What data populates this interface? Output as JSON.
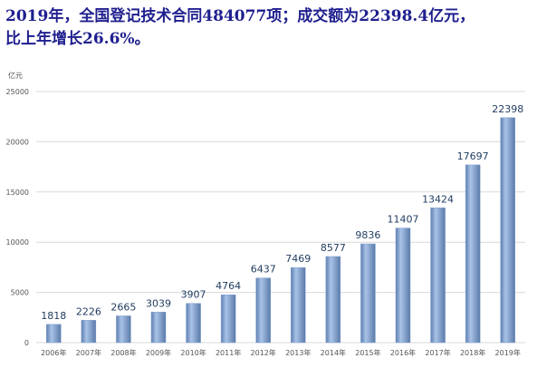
{
  "headline": {
    "line1": "2019年，全国登记技术合同484077项；成交额为22398.4亿元，",
    "line2": "比上年增长26.6%。"
  },
  "chart_data": {
    "type": "bar",
    "y_unit": "亿元",
    "categories": [
      "2006年",
      "2007年",
      "2008年",
      "2009年",
      "2010年",
      "2011年",
      "2012年",
      "2013年",
      "2014年",
      "2015年",
      "2016年",
      "2017年",
      "2018年",
      "2019年"
    ],
    "values": [
      1818,
      2226,
      2665,
      3039,
      3907,
      4764,
      6437,
      7469,
      8577,
      9836,
      11407,
      13424,
      17697,
      22398
    ],
    "ylim": [
      0,
      25000
    ],
    "yticks": [
      0,
      5000,
      10000,
      15000,
      20000,
      25000
    ],
    "grid": true,
    "bar_color": "#7f9fcf",
    "grid_color": "#d9d9d9",
    "value_label_color": "#1f3a5f"
  }
}
